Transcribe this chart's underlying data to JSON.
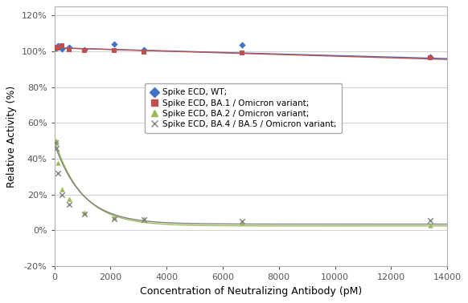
{
  "xlabel": "Concentration of Neutralizing Antibody (pM)",
  "ylabel": "Relative Activity (%)",
  "xlim": [
    0,
    14000
  ],
  "ylim": [
    -0.2,
    1.25
  ],
  "yticks": [
    -0.2,
    0.0,
    0.2,
    0.4,
    0.6,
    0.8,
    1.0,
    1.2
  ],
  "ytick_labels": [
    "-20%",
    "0%",
    "20%",
    "40%",
    "60%",
    "80%",
    "100%",
    "120%"
  ],
  "xticks": [
    0,
    2000,
    4000,
    6000,
    8000,
    10000,
    12000,
    14000
  ],
  "wt_x": [
    33,
    67,
    133,
    267,
    533,
    1067,
    2133,
    3200,
    6700,
    13400
  ],
  "wt_y": [
    1.02,
    1.02,
    1.03,
    1.015,
    1.025,
    1.01,
    1.04,
    1.01,
    1.035,
    0.97
  ],
  "wt_color": "#4472c4",
  "ba1_x": [
    33,
    67,
    133,
    267,
    533,
    1067,
    2133,
    3200,
    6700,
    13400
  ],
  "ba1_y": [
    1.02,
    1.025,
    1.02,
    1.03,
    1.01,
    1.005,
    1.005,
    0.995,
    0.99,
    0.965
  ],
  "ba1_color": "#c0504d",
  "ba2_x": [
    33,
    67,
    133,
    267,
    533,
    1067,
    2133,
    3200,
    6700,
    13400
  ],
  "ba2_y": [
    0.5,
    0.5,
    0.38,
    0.23,
    0.175,
    0.1,
    0.075,
    0.065,
    0.04,
    0.03
  ],
  "ba2_color": "#9bbb59",
  "ba45_x": [
    33,
    67,
    133,
    267,
    533,
    1067,
    2133,
    3200,
    6700,
    13400
  ],
  "ba45_y": [
    0.49,
    0.46,
    0.32,
    0.2,
    0.145,
    0.09,
    0.065,
    0.06,
    0.05,
    0.055
  ],
  "ba45_color": "#808080",
  "legend_entries": [
    "Spike ECD, WT;",
    "Spike ECD, BA.1 / Omicron variant;",
    "Spike ECD, BA.2 / Omicron variant;",
    "Spike ECD, BA.4 / BA.5 / Omicron variant;"
  ],
  "bg_color": "#ffffff",
  "grid_color": "#d3d3d3"
}
